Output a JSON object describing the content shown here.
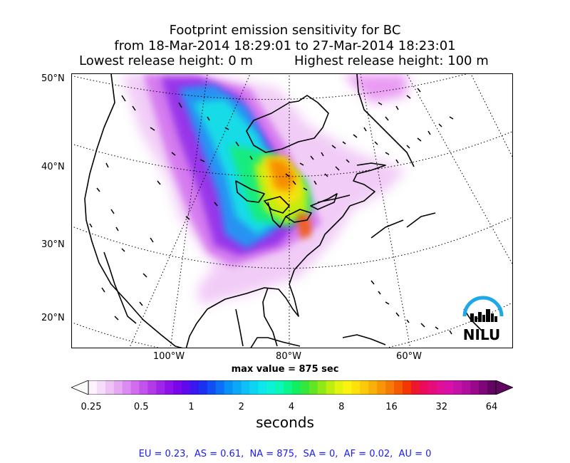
{
  "title": {
    "line1": "Footprint emission sensitivity for BC",
    "line2": "from 18-Mar-2014 18:29:01 to 27-Mar-2014 18:23:01",
    "lowest_release": "Lowest release height: 0 m",
    "highest_release": "Highest release height: 100 m"
  },
  "map": {
    "lat_labels": [
      "50°N",
      "40°N",
      "30°N",
      "20°N"
    ],
    "lon_labels": [
      "100°W",
      "80°W",
      "60°W"
    ],
    "max_value": "max value = 875 sec",
    "logo_text": "NILU"
  },
  "colorbar": {
    "ticks": [
      "0.25",
      "0.5",
      "1",
      "2",
      "4",
      "8",
      "16",
      "32",
      "64"
    ],
    "units": "seconds",
    "colors": [
      "#fdf2fd",
      "#f7dcf9",
      "#efc2f6",
      "#e6a8f3",
      "#dc8cf0",
      "#d06eee",
      "#c152ec",
      "#b23ae9",
      "#a124e8",
      "#8e12e8",
      "#7a06ea",
      "#5f0aec",
      "#3a16f0",
      "#1c30f2",
      "#1050f3",
      "#0a70f5",
      "#0a8ff7",
      "#0ba8f8",
      "#0dc0f8",
      "#0ed4f4",
      "#0de6ea",
      "#0bf2d6",
      "#0af7b6",
      "#0af58e",
      "#12ee62",
      "#33e83c",
      "#62e624",
      "#90e816",
      "#bcee10",
      "#e2f40e",
      "#fbf20e",
      "#fde00c",
      "#fcc80a",
      "#fab008",
      "#f89606",
      "#f67b04",
      "#f45c04",
      "#f23604",
      "#ee1630",
      "#ea0c58",
      "#e60c7c",
      "#e20e98",
      "#d810a8",
      "#c610aa",
      "#b00e9e",
      "#98098c",
      "#7e0678",
      "#640462"
    ]
  },
  "regions": "EU = 0.23,  AS = 0.61,  NA = 875,  SA = 0,  AF = 0.02,  AU = 0"
}
